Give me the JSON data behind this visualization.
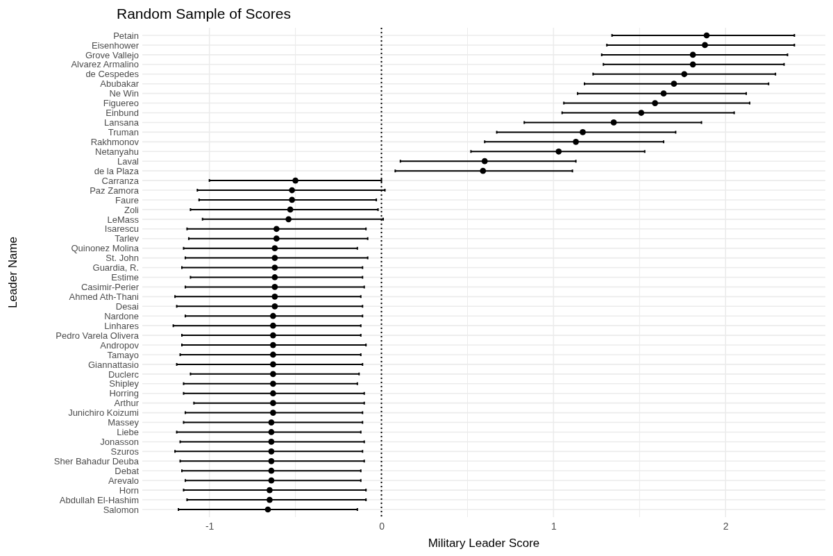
{
  "chart_data": {
    "type": "scatter",
    "orientation": "horizontal",
    "title": "Random Sample of Scores",
    "xlabel": "Military Leader Score",
    "ylabel": "Leader Name",
    "categories": [
      "Petain",
      "Eisenhower",
      "Grove Vallejo",
      "Alvarez Armalino",
      "de Cespedes",
      "Abubakar",
      "Ne Win",
      "Figuereo",
      "Einbund",
      "Lansana",
      "Truman",
      "Rakhmonov",
      "Netanyahu",
      "Laval",
      "de la Plaza",
      "Carranza",
      "Paz Zamora",
      "Faure",
      "Zoli",
      "LeMass",
      "Isarescu",
      "Tarlev",
      "Quinonez Molina",
      "St. John",
      "Guardia, R.",
      "Estime",
      "Casimir-Perier",
      "Ahmed Ath-Thani",
      "Desai",
      "Nardone",
      "Linhares",
      "Pedro Varela Olivera",
      "Andropov",
      "Tamayo",
      "Giannattasio",
      "Duclerc",
      "Shipley",
      "Horring",
      "Arthur",
      "Junichiro Koizumi",
      "Massey",
      "Liebe",
      "Jonasson",
      "Szuros",
      "Sher Bahadur Deuba",
      "Debat",
      "Arevalo",
      "Horn",
      "Abdullah El-Hashim",
      "Salomon"
    ],
    "series": [
      {
        "color": "#000000",
        "values": [
          1.89,
          1.88,
          1.81,
          1.81,
          1.76,
          1.7,
          1.64,
          1.59,
          1.51,
          1.35,
          1.17,
          1.13,
          1.03,
          0.6,
          0.59,
          -0.5,
          -0.52,
          -0.52,
          -0.53,
          -0.54,
          -0.61,
          -0.61,
          -0.62,
          -0.62,
          -0.62,
          -0.62,
          -0.62,
          -0.62,
          -0.62,
          -0.63,
          -0.63,
          -0.63,
          -0.63,
          -0.63,
          -0.63,
          -0.63,
          -0.63,
          -0.63,
          -0.63,
          -0.63,
          -0.64,
          -0.64,
          -0.64,
          -0.64,
          -0.64,
          -0.64,
          -0.64,
          -0.65,
          -0.65,
          -0.66
        ],
        "errors": [
          [
            1.34,
            2.4
          ],
          [
            1.31,
            2.4
          ],
          [
            1.28,
            2.36
          ],
          [
            1.29,
            2.34
          ],
          [
            1.23,
            2.29
          ],
          [
            1.18,
            2.25
          ],
          [
            1.14,
            2.12
          ],
          [
            1.06,
            2.14
          ],
          [
            1.05,
            2.05
          ],
          [
            0.83,
            1.86
          ],
          [
            0.67,
            1.71
          ],
          [
            0.6,
            1.64
          ],
          [
            0.52,
            1.53
          ],
          [
            0.11,
            1.13
          ],
          [
            0.08,
            1.11
          ],
          [
            -1.0,
            0.0
          ],
          [
            -1.07,
            0.02
          ],
          [
            -1.06,
            -0.03
          ],
          [
            -1.11,
            -0.02
          ],
          [
            -1.04,
            0.01
          ],
          [
            -1.13,
            -0.09
          ],
          [
            -1.12,
            -0.08
          ],
          [
            -1.15,
            -0.14
          ],
          [
            -1.14,
            -0.08
          ],
          [
            -1.16,
            -0.11
          ],
          [
            -1.11,
            -0.11
          ],
          [
            -1.14,
            -0.1
          ],
          [
            -1.2,
            -0.12
          ],
          [
            -1.19,
            -0.11
          ],
          [
            -1.14,
            -0.11
          ],
          [
            -1.21,
            -0.12
          ],
          [
            -1.16,
            -0.12
          ],
          [
            -1.16,
            -0.09
          ],
          [
            -1.17,
            -0.12
          ],
          [
            -1.19,
            -0.11
          ],
          [
            -1.11,
            -0.13
          ],
          [
            -1.15,
            -0.14
          ],
          [
            -1.15,
            -0.1
          ],
          [
            -1.09,
            -0.1
          ],
          [
            -1.14,
            -0.11
          ],
          [
            -1.15,
            -0.11
          ],
          [
            -1.19,
            -0.12
          ],
          [
            -1.17,
            -0.1
          ],
          [
            -1.2,
            -0.11
          ],
          [
            -1.17,
            -0.1
          ],
          [
            -1.16,
            -0.12
          ],
          [
            -1.14,
            -0.12
          ],
          [
            -1.15,
            -0.09
          ],
          [
            -1.13,
            -0.09
          ],
          [
            -1.18,
            -0.14
          ]
        ]
      }
    ],
    "xlim": [
      -1.39,
      2.58
    ],
    "xticks": [
      -1,
      {
        "value": -0.5,
        "label": null
      },
      0,
      {
        "value": 0.5,
        "label": null
      },
      1,
      {
        "value": 1.5,
        "label": null
      },
      2
    ],
    "ref_lines": [
      {
        "axis": "x",
        "value": 0,
        "line_style": "dotted",
        "color": "#000000"
      }
    ],
    "grid": true,
    "marker": "circle"
  }
}
